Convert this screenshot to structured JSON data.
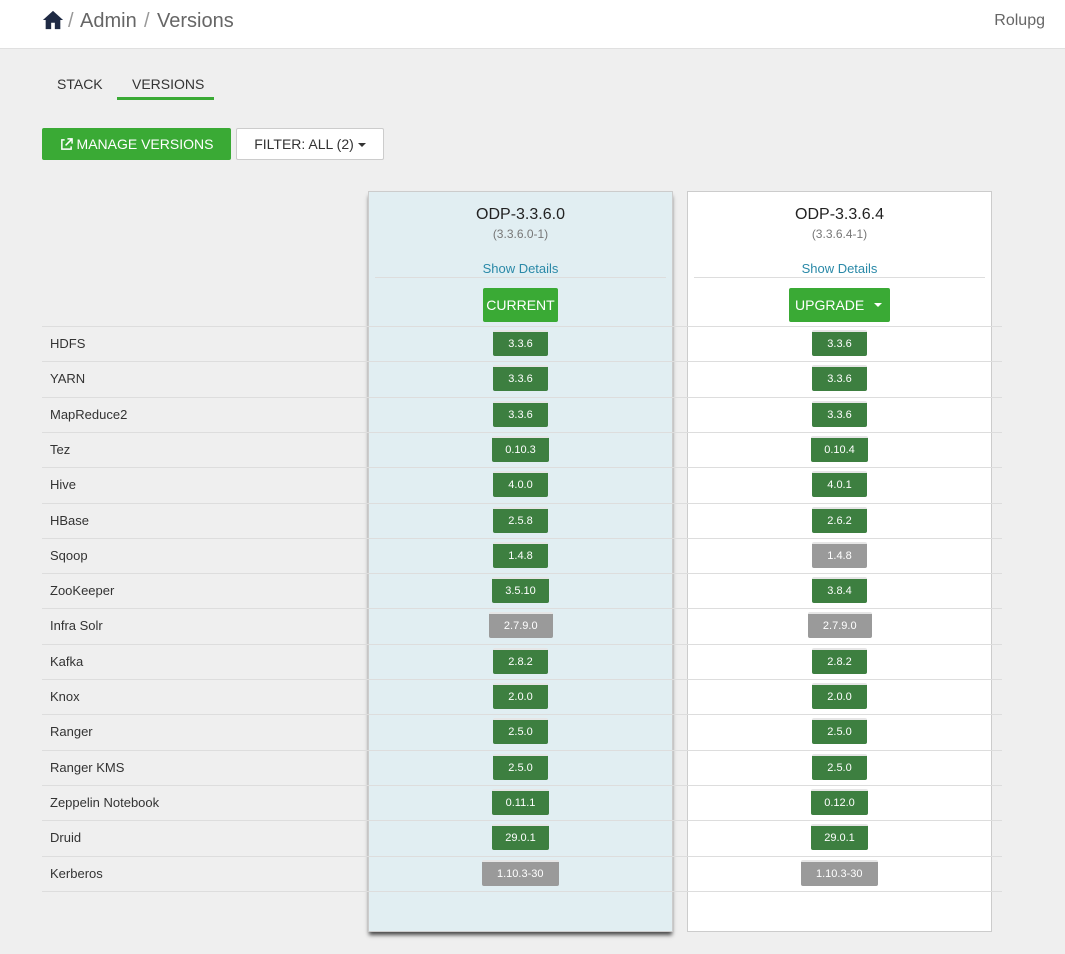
{
  "breadcrumb": {
    "segments": [
      "Admin",
      "Versions"
    ],
    "separator": "/"
  },
  "user": {
    "name": "Rolupg"
  },
  "tabs": [
    {
      "label": "STACK",
      "active": false
    },
    {
      "label": "VERSIONS",
      "active": true
    }
  ],
  "toolbar": {
    "manage_label": "MANAGE VERSIONS",
    "filter_label": "FILTER: ALL (2)"
  },
  "colors": {
    "accent": "#3aaa35",
    "installed": "#3d7f40",
    "not_installed": "#9a9a9a",
    "link": "#2a89a8"
  },
  "versions": [
    {
      "name": "ODP-3.3.6.0",
      "build": "(3.3.6.0-1)",
      "details_label": "Show Details",
      "action_label": "CURRENT",
      "services": [
        {
          "v": "3.3.6",
          "s": "green"
        },
        {
          "v": "3.3.6",
          "s": "green"
        },
        {
          "v": "3.3.6",
          "s": "green"
        },
        {
          "v": "0.10.3",
          "s": "green"
        },
        {
          "v": "4.0.0",
          "s": "green"
        },
        {
          "v": "2.5.8",
          "s": "green"
        },
        {
          "v": "1.4.8",
          "s": "green"
        },
        {
          "v": "3.5.10",
          "s": "green"
        },
        {
          "v": "2.7.9.0",
          "s": "gray"
        },
        {
          "v": "2.8.2",
          "s": "green"
        },
        {
          "v": "2.0.0",
          "s": "green"
        },
        {
          "v": "2.5.0",
          "s": "green"
        },
        {
          "v": "2.5.0",
          "s": "green"
        },
        {
          "v": "0.11.1",
          "s": "green"
        },
        {
          "v": "29.0.1",
          "s": "green"
        },
        {
          "v": "1.10.3-30",
          "s": "gray"
        }
      ]
    },
    {
      "name": "ODP-3.3.6.4",
      "build": "(3.3.6.4-1)",
      "details_label": "Show Details",
      "action_label": "UPGRADE",
      "services": [
        {
          "v": "3.3.6",
          "s": "green"
        },
        {
          "v": "3.3.6",
          "s": "green"
        },
        {
          "v": "3.3.6",
          "s": "green"
        },
        {
          "v": "0.10.4",
          "s": "green"
        },
        {
          "v": "4.0.1",
          "s": "green"
        },
        {
          "v": "2.6.2",
          "s": "green"
        },
        {
          "v": "1.4.8",
          "s": "gray"
        },
        {
          "v": "3.8.4",
          "s": "green"
        },
        {
          "v": "2.7.9.0",
          "s": "gray"
        },
        {
          "v": "2.8.2",
          "s": "green"
        },
        {
          "v": "2.0.0",
          "s": "green"
        },
        {
          "v": "2.5.0",
          "s": "green"
        },
        {
          "v": "2.5.0",
          "s": "green"
        },
        {
          "v": "0.12.0",
          "s": "green"
        },
        {
          "v": "29.0.1",
          "s": "green"
        },
        {
          "v": "1.10.3-30",
          "s": "gray"
        }
      ]
    }
  ],
  "service_names": [
    "HDFS",
    "YARN",
    "MapReduce2",
    "Tez",
    "Hive",
    "HBase",
    "Sqoop",
    "ZooKeeper",
    "Infra Solr",
    "Kafka",
    "Knox",
    "Ranger",
    "Ranger KMS",
    "Zeppelin Notebook",
    "Druid",
    "Kerberos"
  ]
}
